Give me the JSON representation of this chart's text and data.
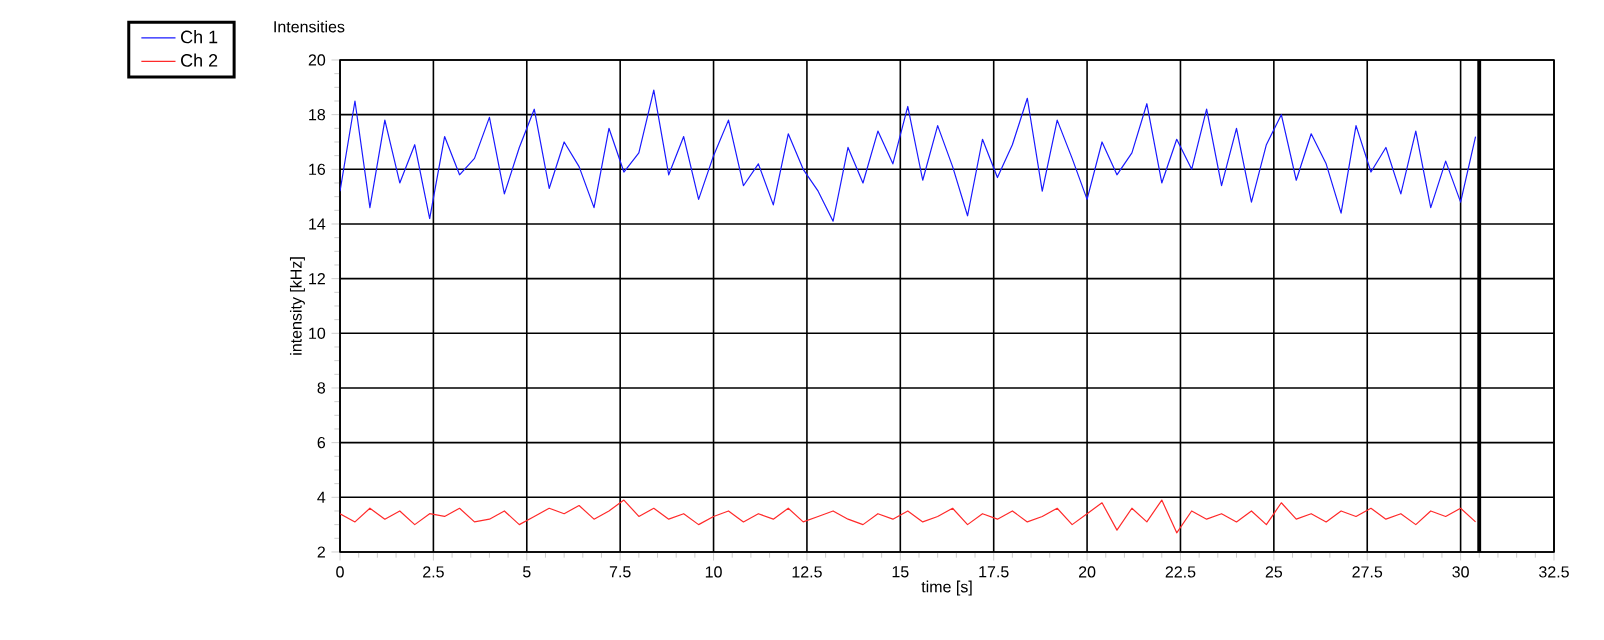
{
  "chart_data": {
    "type": "line",
    "title": "Intensities",
    "xlabel": "time [s]",
    "ylabel": "intensity [kHz]",
    "x": [
      0,
      0.4,
      0.8,
      1.2,
      1.6,
      2.0,
      2.4,
      2.8,
      3.2,
      3.6,
      4.0,
      4.4,
      4.8,
      5.2,
      5.6,
      6.0,
      6.4,
      6.8,
      7.2,
      7.6,
      8.0,
      8.4,
      8.8,
      9.2,
      9.6,
      10.0,
      10.4,
      10.8,
      11.2,
      11.6,
      12.0,
      12.4,
      12.8,
      13.2,
      13.6,
      14.0,
      14.4,
      14.8,
      15.2,
      15.6,
      16.0,
      16.4,
      16.8,
      17.2,
      17.6,
      18.0,
      18.4,
      18.8,
      19.2,
      19.6,
      20.0,
      20.4,
      20.8,
      21.2,
      21.6,
      22.0,
      22.4,
      22.8,
      23.2,
      23.6,
      24.0,
      24.4,
      24.8,
      25.2,
      25.6,
      26.0,
      26.4,
      26.8,
      27.2,
      27.6,
      28.0,
      28.4,
      28.8,
      29.2,
      29.6,
      30.0,
      30.4
    ],
    "series": [
      {
        "name": "Ch 1",
        "color": "#1a1aff",
        "values": [
          15.2,
          18.5,
          14.6,
          17.8,
          15.5,
          16.9,
          14.2,
          17.2,
          15.8,
          16.4,
          17.9,
          15.1,
          16.8,
          18.2,
          15.3,
          17.0,
          16.1,
          14.6,
          17.5,
          15.9,
          16.6,
          18.9,
          15.8,
          17.2,
          14.9,
          16.5,
          17.8,
          15.4,
          16.2,
          14.7,
          17.3,
          16.0,
          15.2,
          14.1,
          16.8,
          15.5,
          17.4,
          16.2,
          18.3,
          15.6,
          17.6,
          16.1,
          14.3,
          17.1,
          15.7,
          16.9,
          18.6,
          15.2,
          17.8,
          16.4,
          14.9,
          17.0,
          15.8,
          16.6,
          18.4,
          15.5,
          17.1,
          16.0,
          18.2,
          15.4,
          17.5,
          14.8,
          16.9,
          18.0,
          15.6,
          17.3,
          16.2,
          14.4,
          17.6,
          15.9,
          16.8,
          15.1,
          17.4,
          14.6,
          16.3,
          14.8,
          17.2
        ]
      },
      {
        "name": "Ch 2",
        "color": "#ff2a2a",
        "values": [
          3.4,
          3.1,
          3.6,
          3.2,
          3.5,
          3.0,
          3.4,
          3.3,
          3.6,
          3.1,
          3.2,
          3.5,
          3.0,
          3.3,
          3.6,
          3.4,
          3.7,
          3.2,
          3.5,
          3.9,
          3.3,
          3.6,
          3.2,
          3.4,
          3.0,
          3.3,
          3.5,
          3.1,
          3.4,
          3.2,
          3.6,
          3.1,
          3.3,
          3.5,
          3.2,
          3.0,
          3.4,
          3.2,
          3.5,
          3.1,
          3.3,
          3.6,
          3.0,
          3.4,
          3.2,
          3.5,
          3.1,
          3.3,
          3.6,
          3.0,
          3.4,
          3.8,
          2.8,
          3.6,
          3.1,
          3.9,
          2.7,
          3.5,
          3.2,
          3.4,
          3.1,
          3.5,
          3.0,
          3.8,
          3.2,
          3.4,
          3.1,
          3.5,
          3.3,
          3.6,
          3.2,
          3.4,
          3.0,
          3.5,
          3.3,
          3.6,
          3.1
        ]
      }
    ],
    "xlim": [
      0,
      32.5
    ],
    "xticks": [
      0,
      2.5,
      5,
      7.5,
      10,
      12.5,
      15,
      17.5,
      20,
      22.5,
      25,
      27.5,
      30,
      32.5
    ],
    "ylim": [
      2,
      20
    ],
    "yticks": [
      2,
      4,
      6,
      8,
      10,
      12,
      14,
      16,
      18,
      20
    ],
    "ref_lines": [
      {
        "axis": "x",
        "value": 30.5,
        "color": "#000000"
      }
    ],
    "grid": true,
    "legend": "top left",
    "marker": "none",
    "line_style": "solid"
  }
}
